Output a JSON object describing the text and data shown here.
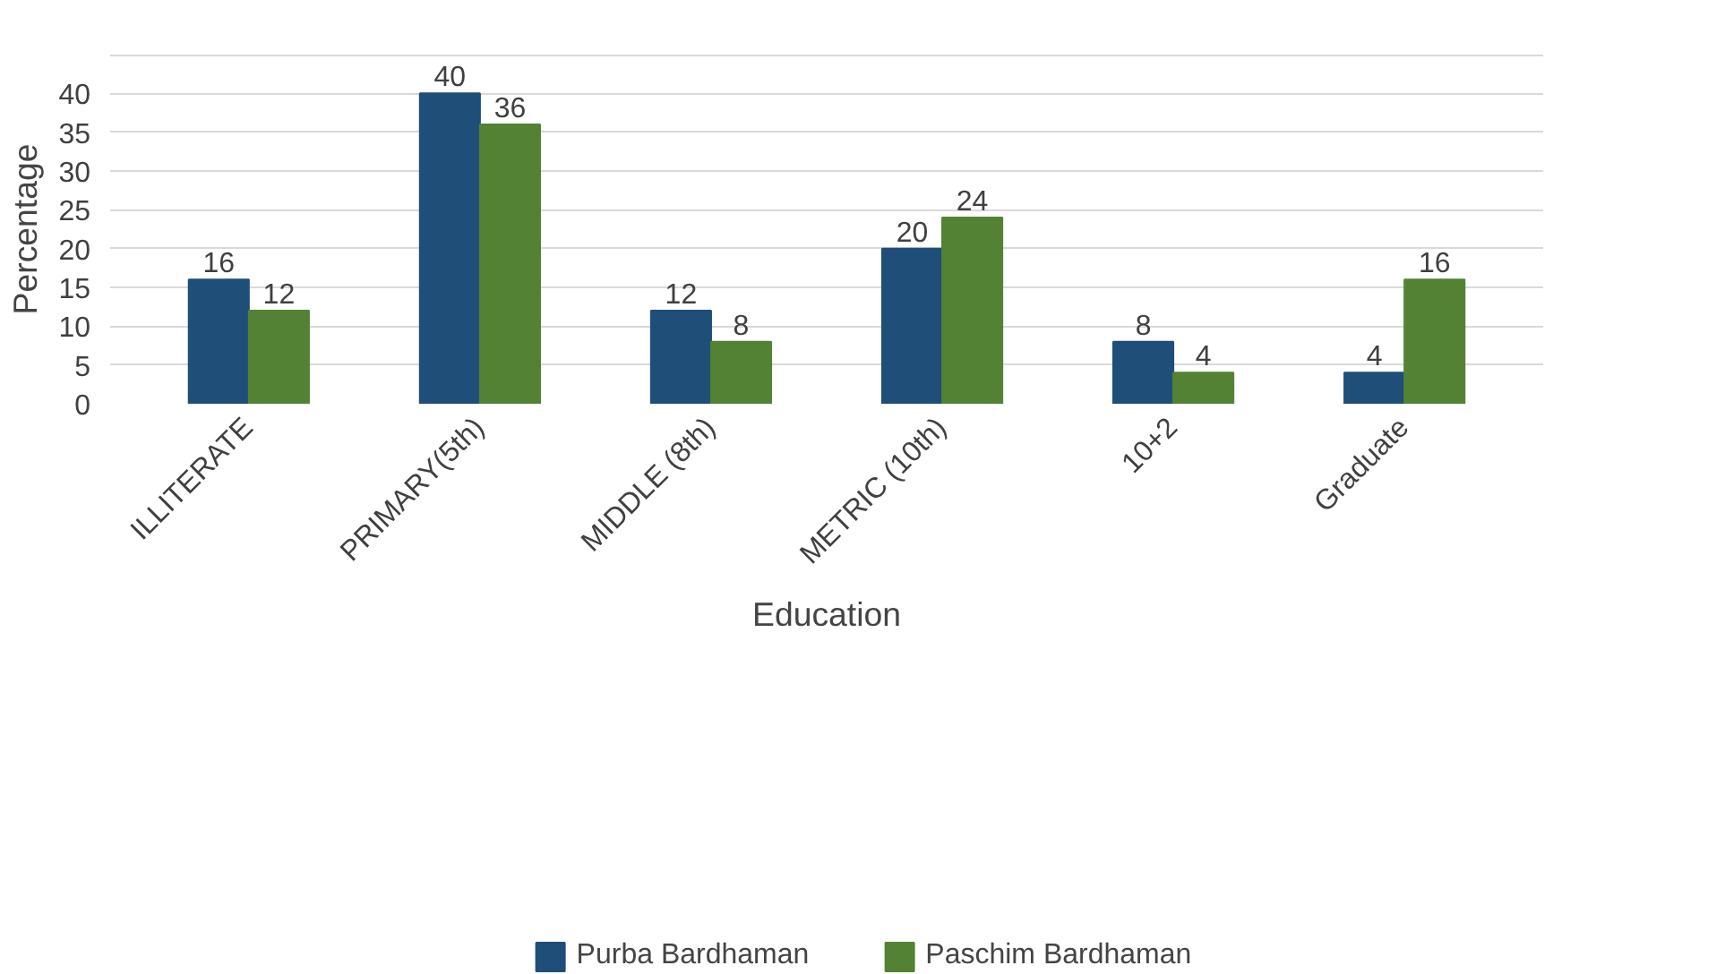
{
  "chart_data": {
    "type": "bar",
    "xlabel": "Education",
    "ylabel": "Percentage",
    "categories": [
      "ILLITERATE",
      "PRIMARY(5th)",
      "MIDDLE (8th)",
      "METRIC (10th)",
      "10+2",
      "Graduate"
    ],
    "series": [
      {
        "name": "Purba Bardhaman",
        "color": "#1f4e79",
        "values": [
          16,
          40,
          12,
          20,
          8,
          4
        ]
      },
      {
        "name": "Paschim Bardhaman",
        "color": "#548235",
        "values": [
          12,
          36,
          8,
          24,
          4,
          16
        ]
      }
    ],
    "ylim": [
      0,
      45
    ],
    "yticks": [
      0,
      5,
      10,
      15,
      20,
      25,
      30,
      35,
      40
    ],
    "grid": "y",
    "legend": "bottom",
    "data_labels": true
  }
}
